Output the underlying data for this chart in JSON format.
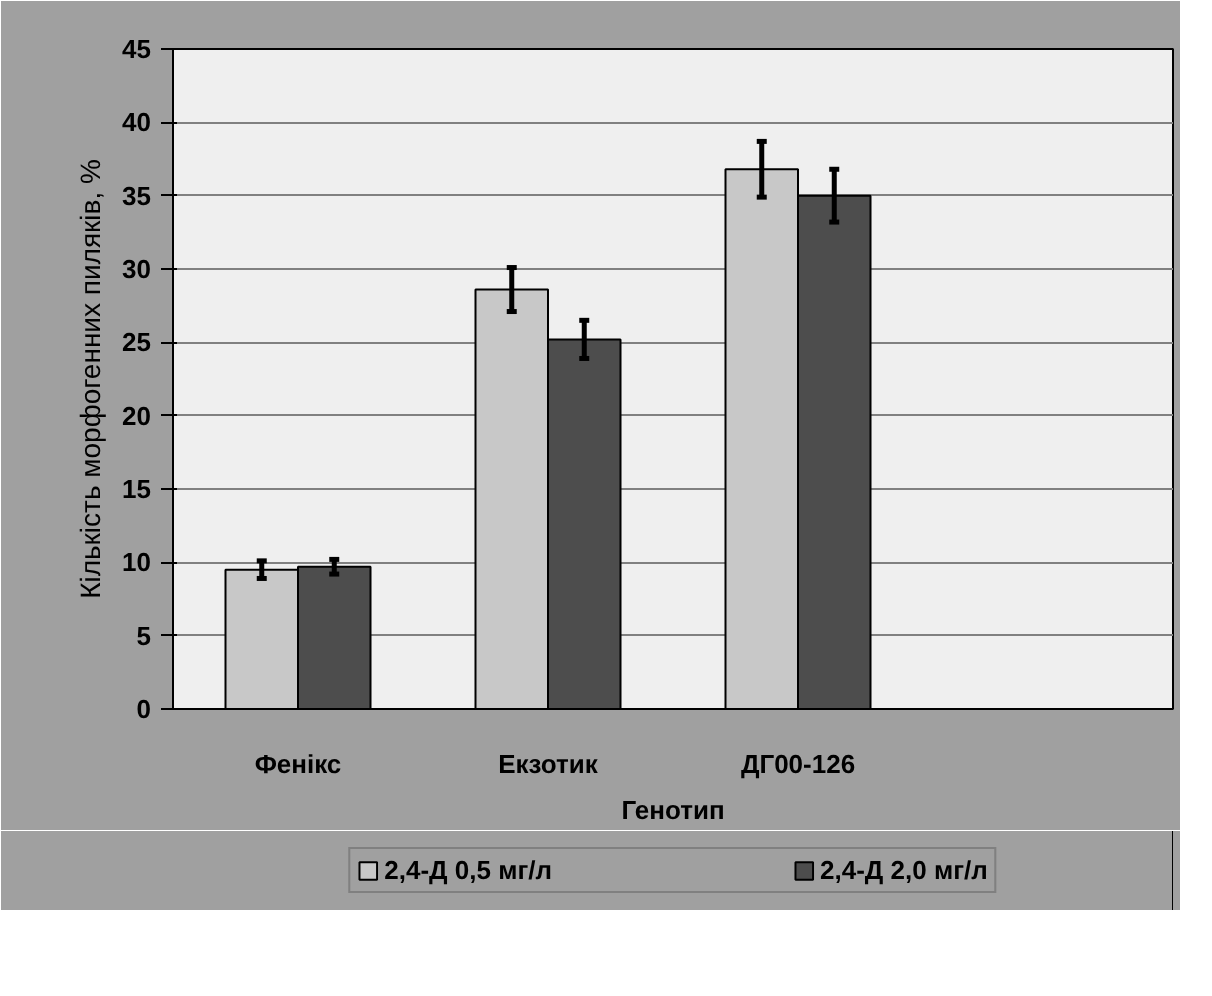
{
  "chart_data": {
    "type": "bar",
    "xlabel": "Генотип",
    "ylabel": "Кількість морфогенних пиляків, %",
    "categories": [
      "Фенікс",
      "Екзотик",
      "ДГ00-126",
      null
    ],
    "series": [
      {
        "name": "2,4-Д 0,5 мг/л",
        "color": "#c8c8c8",
        "values": [
          9.5,
          28.6,
          36.8,
          null
        ],
        "errors": [
          0.6,
          1.5,
          1.9,
          null
        ]
      },
      {
        "name": "2,4-Д 2,0 мг/л",
        "color": "#4d4d4d",
        "values": [
          9.7,
          25.2,
          35.0,
          null
        ],
        "errors": [
          0.5,
          1.3,
          1.8,
          null
        ]
      }
    ],
    "ylim": [
      0,
      45
    ],
    "yticks": [
      0,
      5,
      10,
      15,
      20,
      25,
      30,
      35,
      40,
      45
    ],
    "grid": "y",
    "legend": "bottom"
  }
}
